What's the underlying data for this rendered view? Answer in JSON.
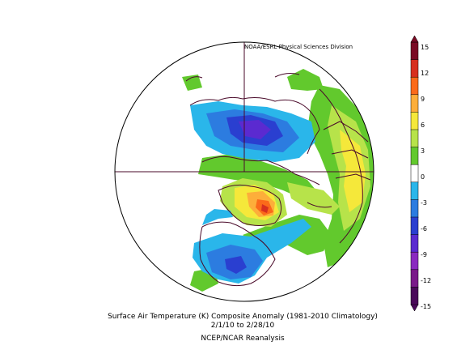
{
  "credit": "NOAA/ESRL Physical Sciences Division",
  "caption": {
    "line1": "Surface Air Temperature (K) Composite Anomaly (1981-2010 Climatology)",
    "line2": "2/1/10  to 2/28/10",
    "line3": "NCEP/NCAR Reanalysis"
  },
  "colorbar": {
    "labels": [
      "15",
      "12",
      "9",
      "6",
      "3",
      "0",
      "-3",
      "-6",
      "-9",
      "-12",
      "-15"
    ],
    "colors": [
      "#7a0a24",
      "#d7301f",
      "#fb6a1a",
      "#fdae3a",
      "#f5e83a",
      "#b7e34a",
      "#62c92d",
      "#ffffff",
      "#2ab6ea",
      "#2c7ce0",
      "#2a3fd0",
      "#5b2ad0",
      "#8a2ac0",
      "#7a1a8a",
      "#4a0a5a"
    ]
  },
  "colors": {
    "coast": "#4a0a2a",
    "grid": "#4a0a2a"
  }
}
